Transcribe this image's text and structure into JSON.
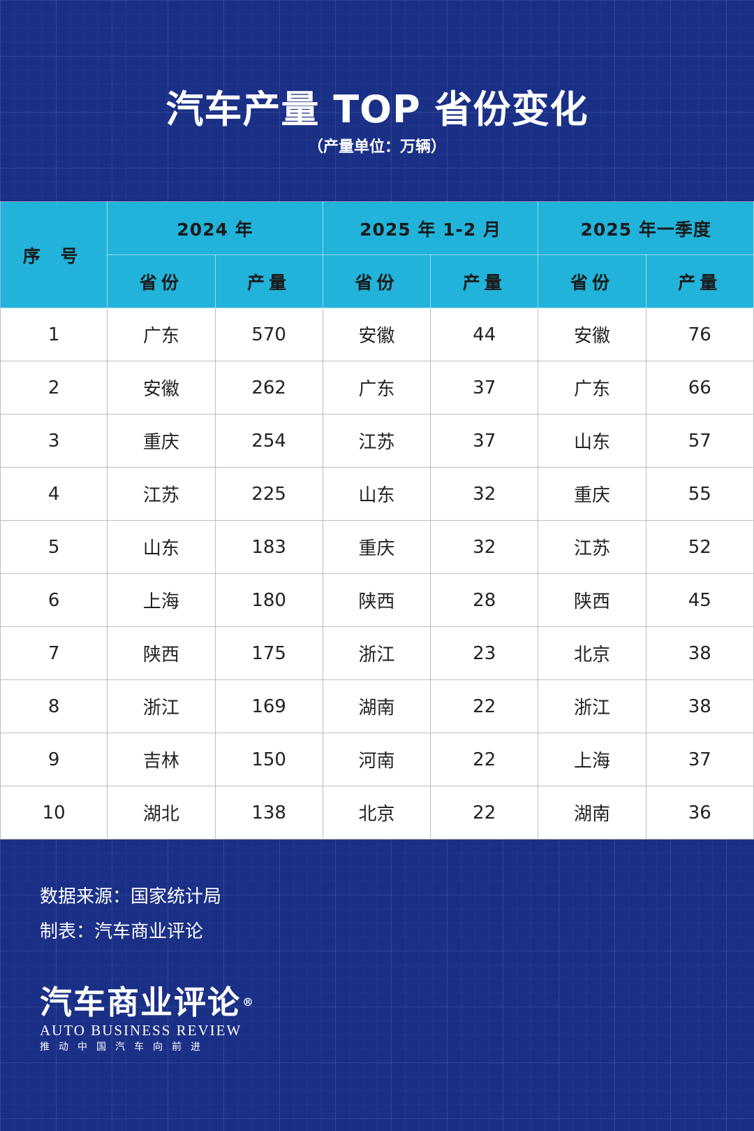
{
  "title": "汽车产量 TOP 省份变化",
  "subtitle": "（产量单位：万辆）",
  "table": {
    "rank_header": "序 号",
    "groups": [
      "2024 年",
      "2025 年 1-2 月",
      "2025 年一季度"
    ],
    "sub_headers": [
      "省份",
      "产量",
      "省份",
      "产量",
      "省份",
      "产量"
    ],
    "rows": [
      [
        "1",
        "广东",
        "570",
        "安徽",
        "44",
        "安徽",
        "76"
      ],
      [
        "2",
        "安徽",
        "262",
        "广东",
        "37",
        "广东",
        "66"
      ],
      [
        "3",
        "重庆",
        "254",
        "江苏",
        "37",
        "山东",
        "57"
      ],
      [
        "4",
        "江苏",
        "225",
        "山东",
        "32",
        "重庆",
        "55"
      ],
      [
        "5",
        "山东",
        "183",
        "重庆",
        "32",
        "江苏",
        "52"
      ],
      [
        "6",
        "上海",
        "180",
        "陕西",
        "28",
        "陕西",
        "45"
      ],
      [
        "7",
        "陕西",
        "175",
        "浙江",
        "23",
        "北京",
        "38"
      ],
      [
        "8",
        "浙江",
        "169",
        "湖南",
        "22",
        "浙江",
        "38"
      ],
      [
        "9",
        "吉林",
        "150",
        "河南",
        "22",
        "上海",
        "37"
      ],
      [
        "10",
        "湖北",
        "138",
        "北京",
        "22",
        "湖南",
        "36"
      ]
    ]
  },
  "footer": {
    "source": "数据来源：国家统计局",
    "maker": "制表：汽车商业评论"
  },
  "brand": {
    "cn": "汽车商业评论",
    "reg": "®",
    "en": "AUTO BUSINESS REVIEW",
    "tagline": "推动中国汽车向前进"
  },
  "colors": {
    "background": "#1a2f86",
    "header": "#21b3d9",
    "row": "#ffffff"
  }
}
